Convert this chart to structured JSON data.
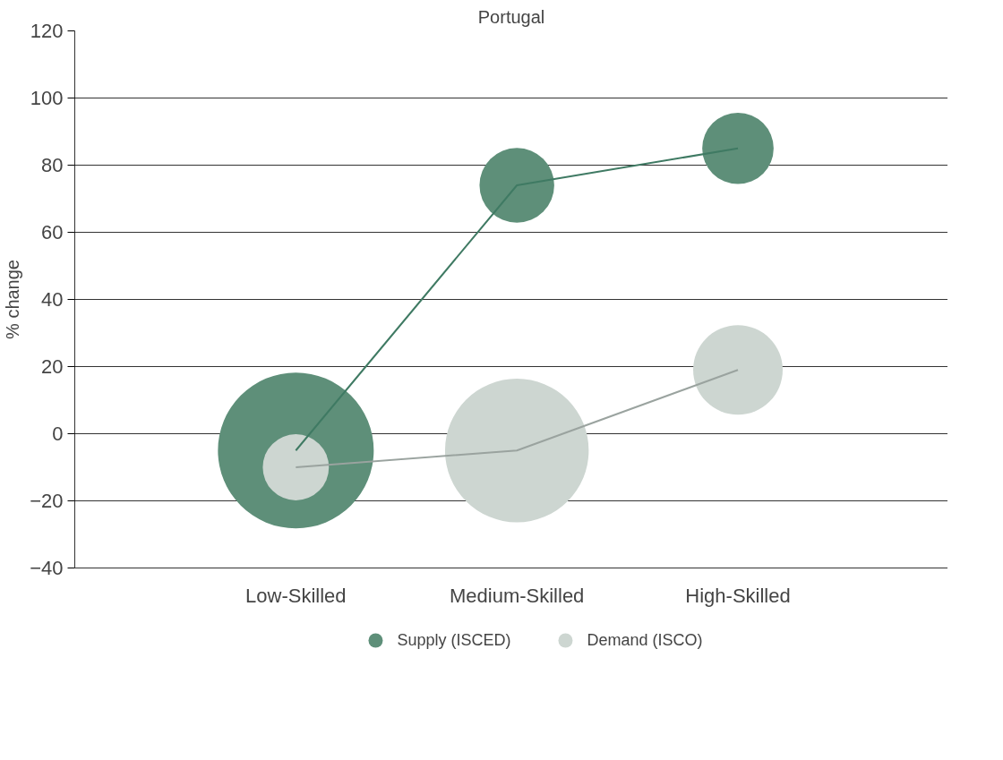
{
  "chart_data": {
    "type": "bubble",
    "title": "Portugal",
    "ylabel": "% change",
    "categories": [
      "Low-Skilled",
      "Medium-Skilled",
      "High-Skilled"
    ],
    "series": [
      {
        "name": "Supply (ISCED)",
        "color": "#5e8f79",
        "values": [
          -5,
          74,
          85
        ],
        "sizes": [
          1,
          0.23,
          0.21
        ]
      },
      {
        "name": "Demand (ISCO)",
        "color": "#cdd6d1",
        "values": [
          -10,
          -5,
          19
        ],
        "sizes": [
          0.18,
          0.85,
          0.33
        ]
      },
      {
        "type": "line",
        "color": "#3f7a63",
        "values": [
          -5,
          74,
          85
        ]
      },
      {
        "type": "line",
        "color": "#9aa39f",
        "values": [
          -10,
          -5,
          19
        ]
      }
    ],
    "ylim": [
      -40,
      120
    ],
    "yticks": [
      -40,
      -20,
      0,
      20,
      40,
      60,
      80,
      100,
      120
    ],
    "grid": "y",
    "legend": "bottom"
  }
}
